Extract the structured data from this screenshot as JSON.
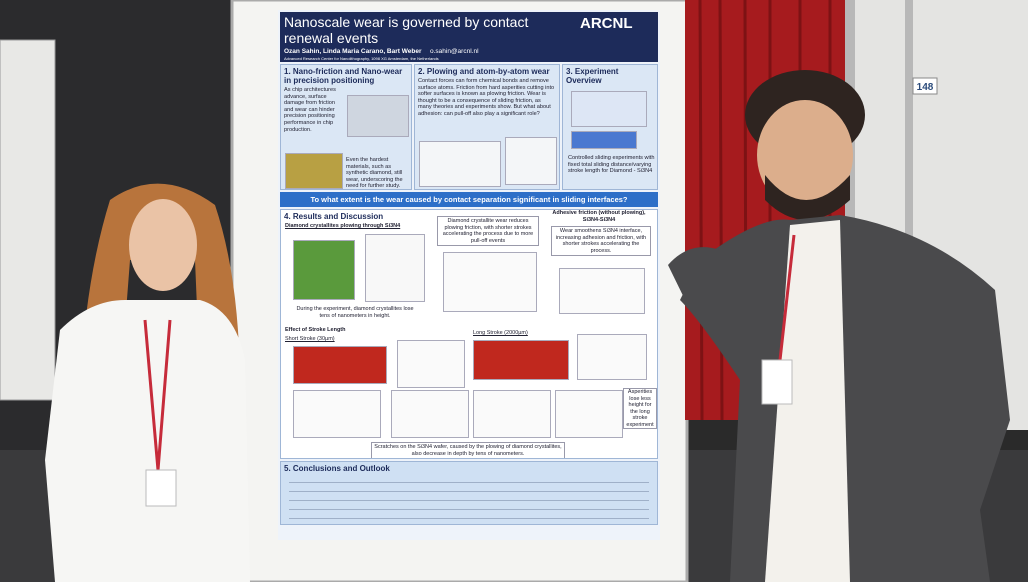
{
  "booth": "148",
  "poster": {
    "title": "Nanoscale wear is governed by contact renewal events",
    "logo": "ARCNL",
    "authors": "Ozan Sahin, Linda Maria Carano, Bart Weber",
    "email": "o.sahin@arcnl.nl",
    "affiliation": "Advanced Research Center for Nanolithography, 1098 XG Amsterdam, the Netherlands",
    "sections": [
      {
        "heading": "1. Nano-friction and Nano-wear in precision positioning",
        "paragraphs": [
          "As chip architectures advance, surface damage from friction and wear can hinder precision positioning performance in chip production.",
          "Even the hardest materials, such as synthetic diamond, still wear, underscoring the need for further study."
        ]
      },
      {
        "heading": "2. Plowing and atom-by-atom wear",
        "paragraphs": [
          "Contact forces can form chemical bonds and remove surface atoms. Friction from hard asperities cutting into softer surfaces is known as plowing friction. Wear is thought to be a consequence of sliding friction, as many theories and experiments show. But what about adhesion: can pull-off also play a significant role?"
        ]
      },
      {
        "heading": "3. Experiment Overview",
        "paragraphs": [
          "Controlled sliding experiments with fixed total sliding distance/varying stroke length for Diamond - Si3N4"
        ]
      },
      {
        "heading": "4. Results and Discussion",
        "paragraphs": [
          "Diamond crystallites plowing through Si3N4",
          "During the experiment, diamond crystallites lose tens of nanometers in height.",
          "Diamond crystallite wear reduces plowing friction, with shorter strokes accelerating the process due to more pull-off events",
          "Adhesive friction (without plowing), Si3N4-Si3N4",
          "Wear smoothens Si3N4 interface, increasing adhesion and friction, with shorter strokes accelerating the process.",
          "Effect of Stroke Length",
          "Short Stroke (30µm)",
          "Long Stroke (2000µm)",
          "Asperities lose less height for the long stroke experiment",
          "Scratches on the Si3N4 wafer, caused by the plowing of diamond crystallites, also decrease in depth by tens of nanometers."
        ]
      },
      {
        "heading": "5. Conclusions and Outlook",
        "paragraphs": []
      }
    ],
    "question": "To what extent is the wear caused by contact separation significant in sliding interfaces?"
  }
}
